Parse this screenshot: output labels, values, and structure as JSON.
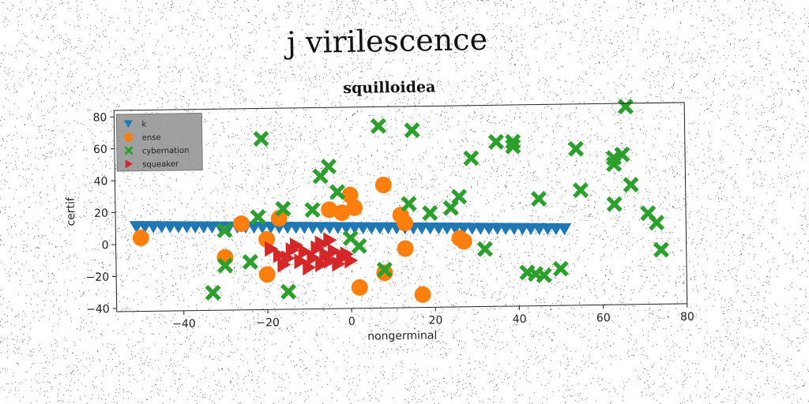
{
  "suptitle": "j virilescence",
  "chart_data": {
    "type": "scatter",
    "title": "squilloidea",
    "xlabel": "nongerminal",
    "ylabel": "certif",
    "xlim": [
      -56,
      80
    ],
    "ylim": [
      -42,
      84
    ],
    "xticks": [
      -40,
      -20,
      0,
      20,
      40,
      60,
      80
    ],
    "yticks": [
      -40,
      -20,
      0,
      20,
      40,
      60,
      80
    ],
    "grid": false,
    "legend_position": "top-left",
    "series": [
      {
        "name": "k",
        "marker": "triangle-down",
        "color": "#1f77b4",
        "points": [
          [
            -51,
            11
          ],
          [
            -49,
            10.9
          ],
          [
            -47,
            10.8
          ],
          [
            -45,
            10.7
          ],
          [
            -43,
            10.6
          ],
          [
            -41,
            10.5
          ],
          [
            -39,
            10.4
          ],
          [
            -37,
            10.3
          ],
          [
            -35,
            10.2
          ],
          [
            -33,
            10.1
          ],
          [
            -31,
            10
          ],
          [
            -29,
            9.9
          ],
          [
            -27,
            9.8
          ],
          [
            -25,
            9.7
          ],
          [
            -23,
            9.6
          ],
          [
            -21,
            9.5
          ],
          [
            -19,
            9.4
          ],
          [
            -17,
            9.3
          ],
          [
            -15,
            9.2
          ],
          [
            -13,
            9.1
          ],
          [
            -11,
            9
          ],
          [
            -9,
            8.9
          ],
          [
            -7,
            8.8
          ],
          [
            -5,
            8.7
          ],
          [
            -3,
            8.6
          ],
          [
            -1,
            8.5
          ],
          [
            1,
            8.4
          ],
          [
            3,
            8.3
          ],
          [
            5,
            8.2
          ],
          [
            7,
            8.1
          ],
          [
            9,
            8
          ],
          [
            11,
            7.9
          ],
          [
            13,
            7.8
          ],
          [
            15,
            7.7
          ],
          [
            17,
            7.6
          ],
          [
            19,
            7.5
          ],
          [
            21,
            7.4
          ],
          [
            23,
            7.3
          ],
          [
            25,
            7.2
          ],
          [
            27,
            7.1
          ],
          [
            29,
            7
          ],
          [
            31,
            6.9
          ],
          [
            33,
            6.8
          ],
          [
            35,
            6.7
          ],
          [
            37,
            6.6
          ],
          [
            39,
            6.5
          ],
          [
            41,
            6.4
          ],
          [
            43,
            6.3
          ],
          [
            45,
            6.2
          ],
          [
            47,
            6.1
          ],
          [
            49,
            6
          ],
          [
            51,
            5.9
          ]
        ]
      },
      {
        "name": "ense",
        "marker": "circle",
        "color": "#ff7f0e",
        "points": [
          [
            -50,
            4
          ],
          [
            -26,
            12
          ],
          [
            -17,
            15
          ],
          [
            -20,
            2
          ],
          [
            -30,
            -9
          ],
          [
            -20,
            -20
          ],
          [
            -5,
            20
          ],
          [
            -2,
            18
          ],
          [
            0,
            29
          ],
          [
            1,
            21
          ],
          [
            8,
            35
          ],
          [
            12,
            16
          ],
          [
            13,
            11
          ],
          [
            2,
            -29
          ],
          [
            8,
            -20
          ],
          [
            13,
            -5
          ],
          [
            17,
            -34
          ],
          [
            26,
            1
          ],
          [
            27,
            -1
          ]
        ]
      },
      {
        "name": "cybernation",
        "marker": "x-filled",
        "color": "#2ca02c",
        "points": [
          [
            -33,
            -31
          ],
          [
            -30,
            -14
          ],
          [
            -30,
            8
          ],
          [
            -24,
            -12
          ],
          [
            -22,
            16
          ],
          [
            -21,
            65
          ],
          [
            -16,
            21
          ],
          [
            -15,
            -31
          ],
          [
            -9,
            20
          ],
          [
            -7,
            41
          ],
          [
            -5,
            47
          ],
          [
            -3,
            31
          ],
          [
            0,
            2
          ],
          [
            2,
            -3
          ],
          [
            7,
            72
          ],
          [
            8,
            -18
          ],
          [
            14,
            23
          ],
          [
            15,
            69
          ],
          [
            19,
            17
          ],
          [
            24,
            20
          ],
          [
            26,
            27
          ],
          [
            29,
            51
          ],
          [
            32,
            -6
          ],
          [
            35,
            61
          ],
          [
            39,
            61
          ],
          [
            39,
            58
          ],
          [
            42,
            -21
          ],
          [
            44,
            -22
          ],
          [
            45,
            25
          ],
          [
            46,
            -23
          ],
          [
            50,
            -19
          ],
          [
            54,
            56
          ],
          [
            55,
            30
          ],
          [
            63,
            21
          ],
          [
            63,
            46
          ],
          [
            63,
            50
          ],
          [
            65,
            52
          ],
          [
            66,
            82
          ],
          [
            67,
            33
          ],
          [
            71,
            15
          ],
          [
            73,
            9
          ],
          [
            74,
            -8
          ]
        ]
      },
      {
        "name": "squeaker",
        "marker": "triangle-right",
        "color": "#d62728",
        "points": [
          [
            -19,
            -4
          ],
          [
            -17,
            -8
          ],
          [
            -15,
            -10
          ],
          [
            -13,
            -2
          ],
          [
            -12,
            -12
          ],
          [
            -11,
            -6
          ],
          [
            -10,
            -16
          ],
          [
            -9,
            -10
          ],
          [
            -8,
            -4
          ],
          [
            -7,
            -14
          ],
          [
            -6,
            -8
          ],
          [
            -5,
            -12
          ],
          [
            -4,
            -6
          ],
          [
            -3,
            -14
          ],
          [
            -2,
            -10
          ],
          [
            -1,
            -8
          ],
          [
            0,
            -12
          ],
          [
            -16,
            -14
          ],
          [
            -14,
            -5
          ],
          [
            -7,
            -1
          ],
          [
            -5,
            1
          ]
        ]
      }
    ]
  }
}
